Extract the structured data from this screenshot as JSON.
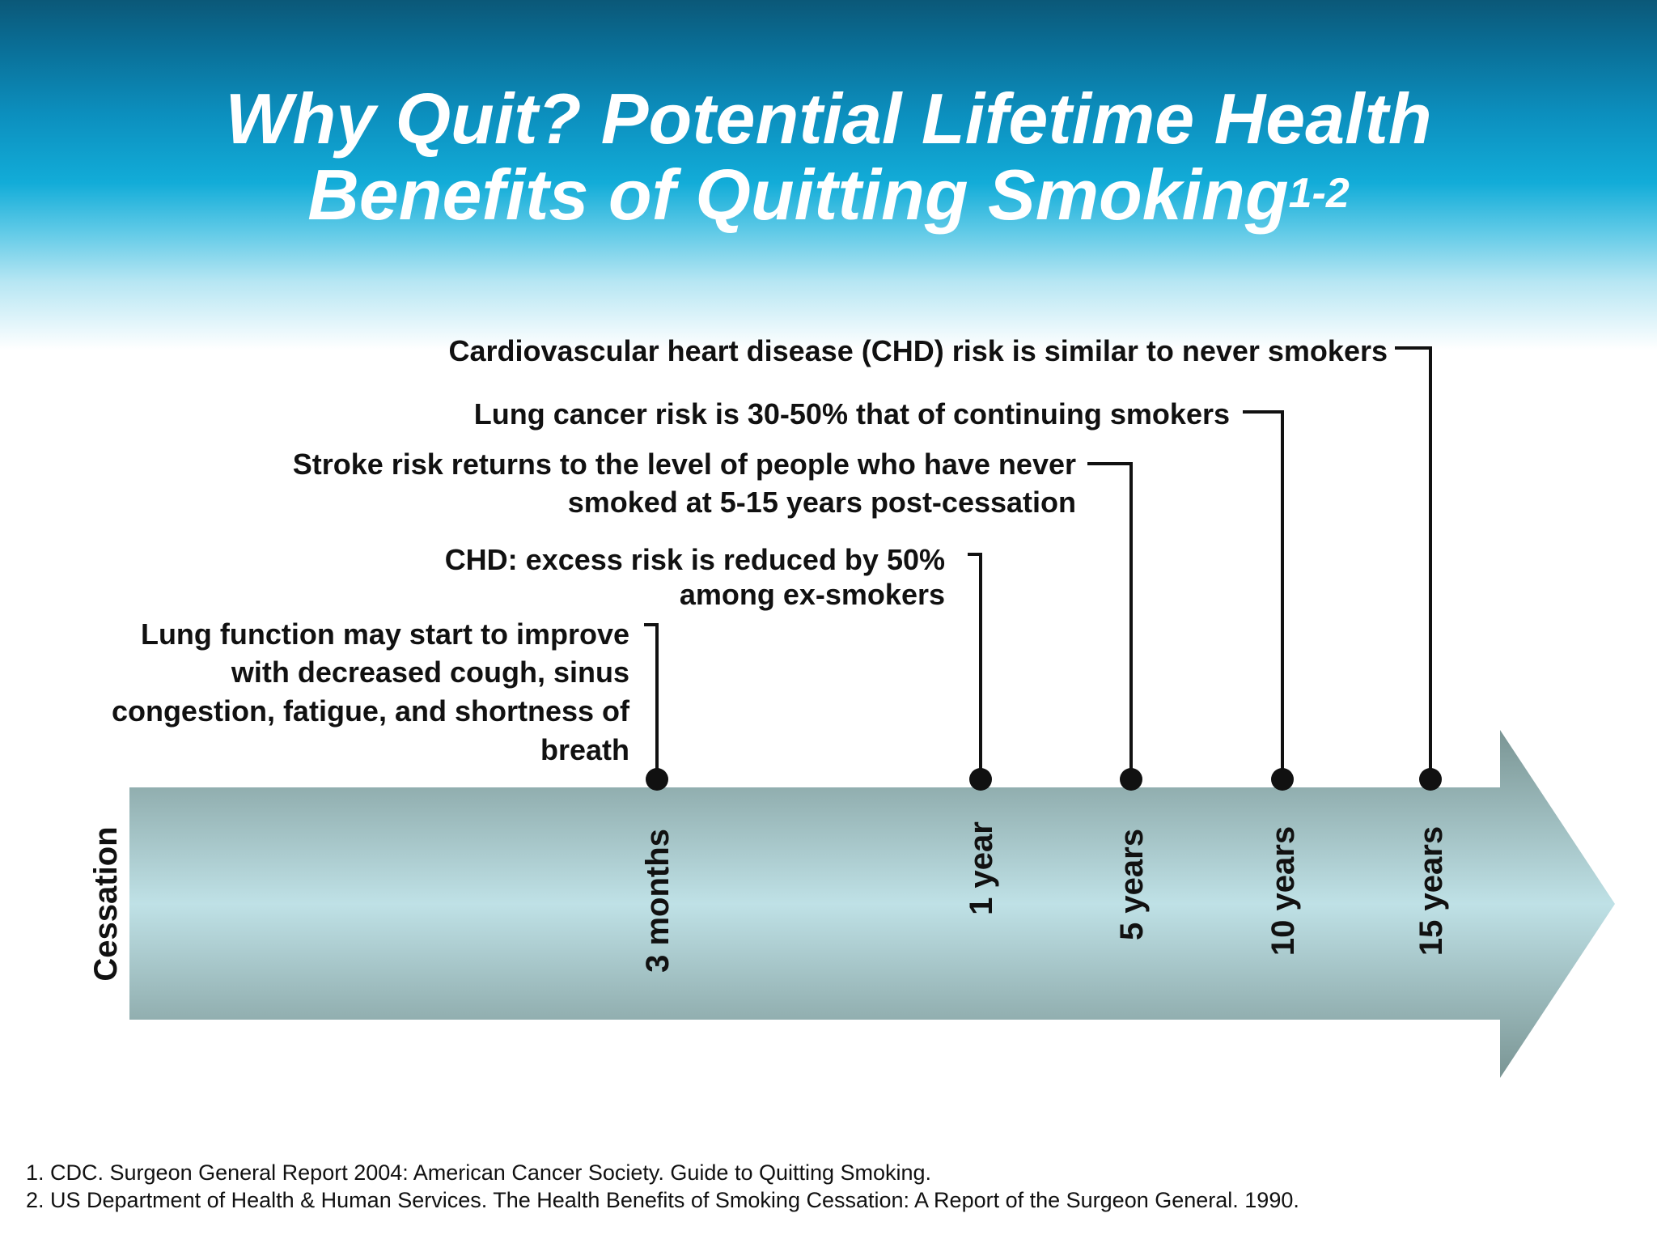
{
  "title": {
    "line1": "Why Quit? Potential Lifetime Health",
    "line2": "Benefits of Quitting Smoking",
    "superscript": "1-2"
  },
  "timeline": {
    "start_label": "Cessation",
    "milestones": [
      {
        "label": "3 months",
        "benefit_lines": [
          "Lung function may start to improve",
          "with decreased cough, sinus",
          "congestion, fatigue, and shortness of",
          "breath"
        ]
      },
      {
        "label": "1 year",
        "benefit_lines": [
          "CHD: excess risk is reduced by 50%",
          "among ex-smokers"
        ]
      },
      {
        "label": "5 years",
        "benefit_lines": [
          "Stroke risk returns to the level of people who have never",
          "smoked at 5-15 years post-cessation"
        ]
      },
      {
        "label": "10 years",
        "benefit_lines": [
          "Lung cancer risk is 30-50% that of continuing smokers"
        ]
      },
      {
        "label": "15 years",
        "benefit_lines": [
          "Cardiovascular heart disease (CHD) risk is similar to never smokers"
        ]
      }
    ]
  },
  "footnotes": [
    "1. CDC. Surgeon General Report 2004: American Cancer Society. Guide to Quitting Smoking.",
    "2. US Department of Health & Human Services. The Health Benefits of Smoking Cessation: A Report of the Surgeon General. 1990."
  ],
  "colors": {
    "arrow_edge": "#7a9594",
    "arrow_center": "#bfe1e6",
    "header_top": "#0b5878",
    "header_mid": "#12acd8",
    "text": "#111111"
  }
}
